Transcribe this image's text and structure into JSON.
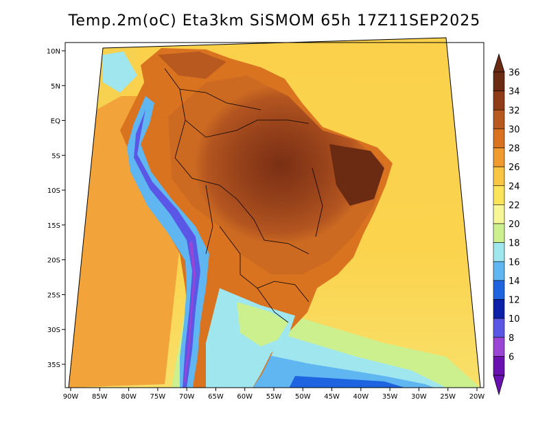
{
  "title": "Temp.2m(oC) Eta3km SiSMOM 65h 17Z11SEP2025",
  "map": {
    "variable": "2 m air temperature",
    "units": "oC",
    "region": "South America",
    "lon_labels": [
      "90W",
      "85W",
      "80W",
      "75W",
      "70W",
      "65W",
      "60W",
      "55W",
      "50W",
      "45W",
      "40W",
      "35W",
      "30W",
      "25W",
      "20W"
    ],
    "lat_labels": [
      "10N",
      "5N",
      "EQ",
      "5S",
      "10S",
      "15S",
      "20S",
      "25S",
      "30S",
      "35S"
    ]
  },
  "colorbar": {
    "labels": [
      "36",
      "34",
      "32",
      "30",
      "28",
      "26",
      "24",
      "22",
      "20",
      "18",
      "16",
      "14",
      "12",
      "10",
      "8",
      "6"
    ],
    "colors": [
      "#6b2a12",
      "#8e3d18",
      "#b85a20",
      "#d9731f",
      "#f19a2f",
      "#f8c643",
      "#fbe45a",
      "#f8f797",
      "#cdf08e",
      "#9fe6ee",
      "#5fb6f0",
      "#1e64e0",
      "#0b1fa8",
      "#5a57e6",
      "#9a45d4",
      "#6a0fb0"
    ]
  }
}
